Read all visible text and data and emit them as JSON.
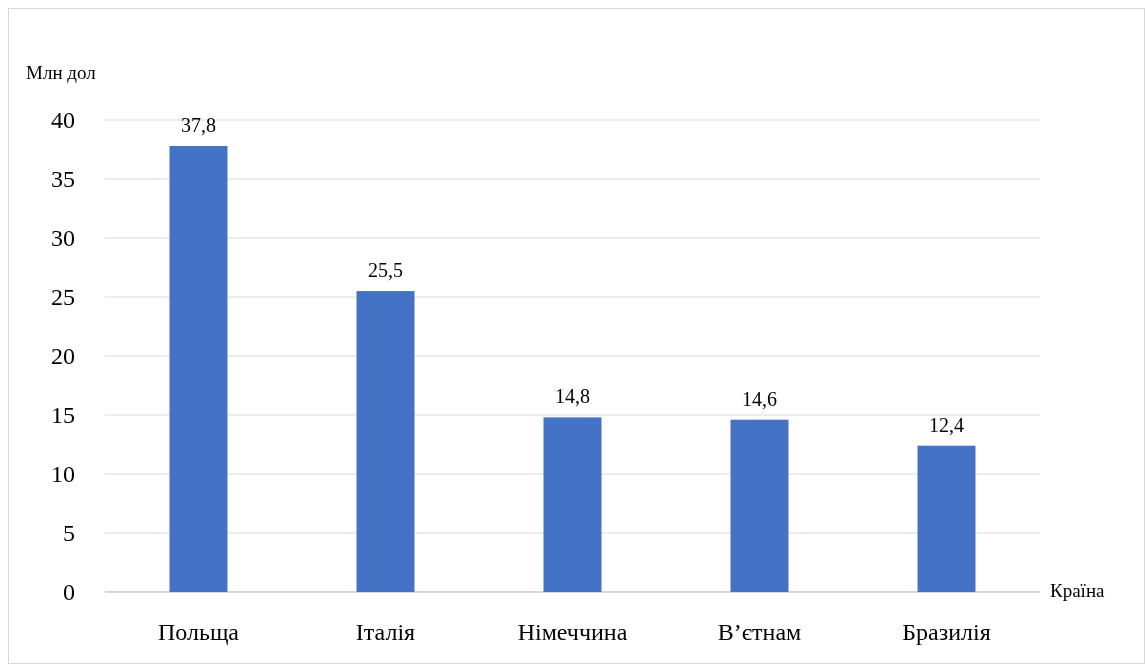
{
  "chart_data": {
    "type": "bar",
    "ylabel": "Млн дол",
    "xlabel": "Країна",
    "categories": [
      "Польща",
      "Італія",
      "Німеччина",
      "В’єтнам",
      "Бразилія"
    ],
    "values": [
      37.8,
      25.5,
      14.8,
      14.6,
      12.4
    ],
    "value_labels": [
      "37,8",
      "25,5",
      "14,8",
      "14,6",
      "12,4"
    ],
    "color": "#4472c4",
    "ylim": [
      0,
      40
    ],
    "yticks": [
      0,
      5,
      10,
      15,
      20,
      25,
      30,
      35,
      40
    ],
    "grid": "y"
  }
}
